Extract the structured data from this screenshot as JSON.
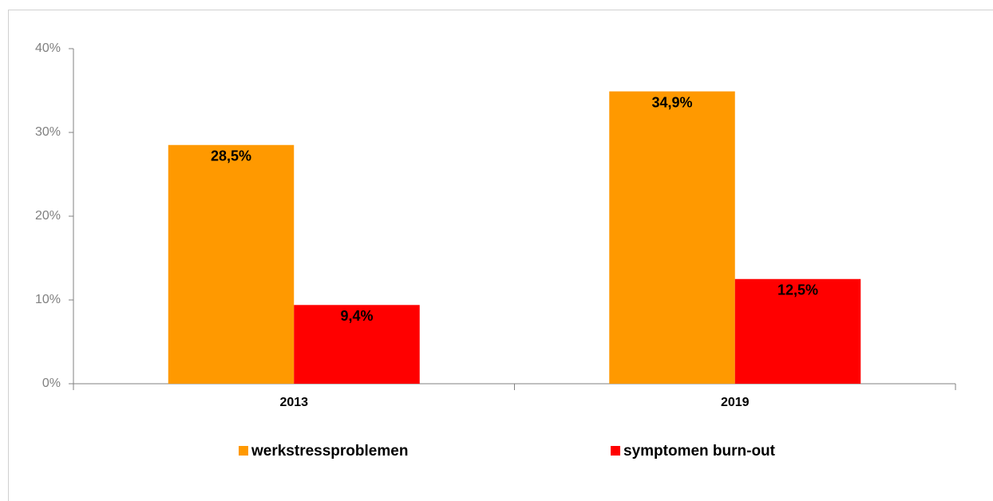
{
  "chart_data": {
    "type": "bar",
    "categories": [
      "2013",
      "2019"
    ],
    "series": [
      {
        "name": "werkstressproblemen",
        "color": "#ff9900",
        "values": [
          28.5,
          34.9
        ],
        "value_labels": [
          "28,5%",
          "34,9%"
        ]
      },
      {
        "name": "symptomen burn-out",
        "color": "#ff0000",
        "values": [
          9.4,
          12.5
        ],
        "value_labels": [
          "9,4%",
          "12,5%"
        ]
      }
    ],
    "ylim": [
      0,
      40
    ],
    "yticks": [
      {
        "value": 0,
        "label": "0%"
      },
      {
        "value": 10,
        "label": "10%"
      },
      {
        "value": 20,
        "label": "20%"
      },
      {
        "value": 30,
        "label": "30%"
      },
      {
        "value": 40,
        "label": "40%"
      }
    ],
    "grid": false,
    "legend": "bottom"
  }
}
